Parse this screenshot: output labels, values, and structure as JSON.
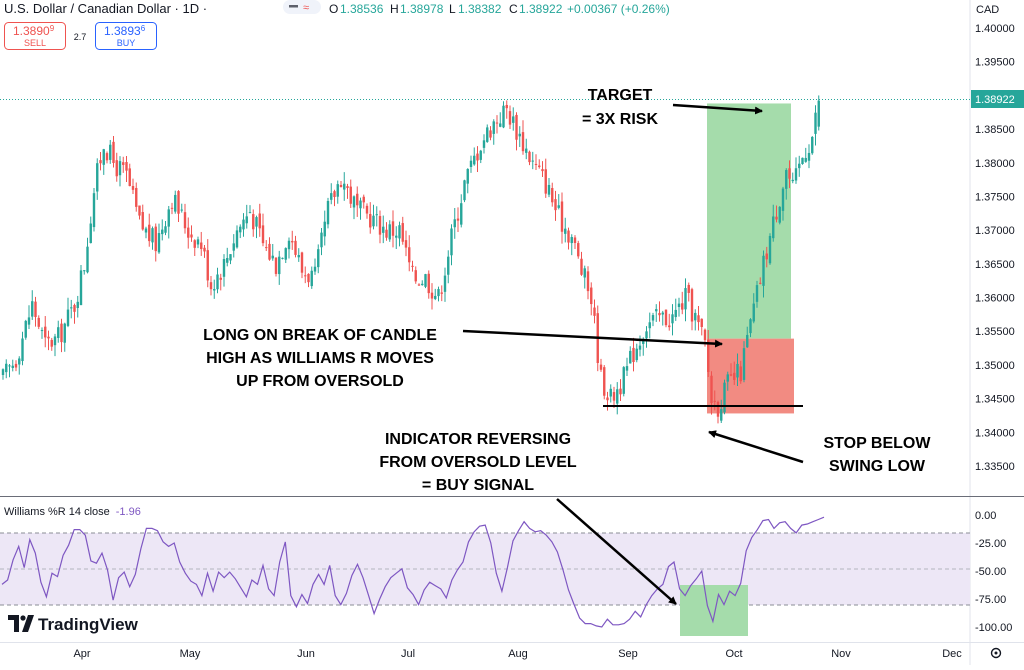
{
  "header": {
    "symbol": "U.S. Dollar / Canadian Dollar · 1D · ",
    "ohlc": {
      "o_label": "O",
      "o": "1.38536",
      "h_label": "H",
      "h": "1.38978",
      "l_label": "L",
      "l": "1.38382",
      "c_label": "C",
      "c": "1.38922",
      "change": "+0.00367 (+0.26%)"
    },
    "sell_price": "1.3890",
    "sell_super": "9",
    "sell_label": "SELL",
    "spread": "2.7",
    "buy_price": "1.3893",
    "buy_super": "6",
    "buy_label": "BUY"
  },
  "currency": "CAD",
  "price_badge": "1.38922",
  "colors": {
    "up": "#26a69a",
    "down": "#ef5350",
    "indicator_line": "#7e57c2",
    "band": "#ede7f6",
    "target_box": "#a5dcab",
    "stop_box": "#f28b82",
    "highlight_box": "#a5dcab",
    "sell": "#ef5350",
    "buy": "#2962ff"
  },
  "indicator": {
    "label": "Williams %R 14 close",
    "value": "-1.96",
    "levels": [
      "0.00",
      "-25.00",
      "-50.00",
      "-75.00",
      "-100.00"
    ]
  },
  "annotations": {
    "target_line1": "TARGET",
    "target_line2": "= 3X RISK",
    "long_line1": "LONG ON BREAK OF CANDLE",
    "long_line2": "HIGH AS WILLIAMS R MOVES",
    "long_line3": "UP FROM OVERSOLD",
    "indicator_line1": "INDICATOR REVERSING",
    "indicator_line2": "FROM OVERSOLD LEVEL",
    "indicator_line3": "= BUY SIGNAL",
    "stop_line1": "STOP BELOW",
    "stop_line2": "SWING LOW"
  },
  "brand": "TradingView",
  "settings_icon": "gear-icon",
  "chart_data": {
    "type": "candlestick",
    "title": "U.S. Dollar / Canadian Dollar · 1D",
    "y_axis": {
      "ticks": [
        "1.40000",
        "1.39500",
        "1.39000",
        "1.38500",
        "1.38000",
        "1.37500",
        "1.37000",
        "1.36500",
        "1.36000",
        "1.35500",
        "1.35000",
        "1.34500",
        "1.34000",
        "1.33500"
      ],
      "range": [
        1.3317,
        1.4018
      ]
    },
    "x_axis": {
      "ticks": [
        "Apr",
        "May",
        "Jun",
        "Jul",
        "Aug",
        "Sep",
        "Oct",
        "Nov",
        "Dec"
      ]
    },
    "path_points": [
      [
        0,
        1.348
      ],
      [
        4,
        1.351
      ],
      [
        9,
        1.359
      ],
      [
        13,
        1.353
      ],
      [
        17,
        1.354
      ],
      [
        22,
        1.359
      ],
      [
        25,
        1.365
      ],
      [
        28,
        1.376
      ],
      [
        31,
        1.383
      ],
      [
        34,
        1.38
      ],
      [
        38,
        1.378
      ],
      [
        42,
        1.371
      ],
      [
        47,
        1.368
      ],
      [
        52,
        1.375
      ],
      [
        57,
        1.37
      ],
      [
        61,
        1.368
      ],
      [
        64,
        1.362
      ],
      [
        68,
        1.365
      ],
      [
        72,
        1.37
      ],
      [
        76,
        1.373
      ],
      [
        80,
        1.368
      ],
      [
        84,
        1.365
      ],
      [
        88,
        1.37
      ],
      [
        92,
        1.364
      ],
      [
        96,
        1.363
      ],
      [
        100,
        1.373
      ],
      [
        104,
        1.378
      ],
      [
        109,
        1.373
      ],
      [
        113,
        1.372
      ],
      [
        118,
        1.37
      ],
      [
        122,
        1.37
      ],
      [
        126,
        1.363
      ],
      [
        130,
        1.363
      ],
      [
        134,
        1.36
      ],
      [
        138,
        1.369
      ],
      [
        142,
        1.377
      ],
      [
        147,
        1.383
      ],
      [
        151,
        1.386
      ],
      [
        155,
        1.388
      ],
      [
        159,
        1.384
      ],
      [
        163,
        1.38
      ],
      [
        167,
        1.377
      ],
      [
        171,
        1.372
      ],
      [
        175,
        1.369
      ],
      [
        178,
        1.364
      ],
      [
        181,
        1.36
      ],
      [
        184,
        1.348
      ],
      [
        187,
        1.345
      ],
      [
        191,
        1.348
      ],
      [
        194,
        1.352
      ],
      [
        198,
        1.356
      ],
      [
        202,
        1.357
      ],
      [
        206,
        1.357
      ],
      [
        210,
        1.36
      ],
      [
        213,
        1.357
      ],
      [
        216,
        1.353
      ],
      [
        218,
        1.345
      ],
      [
        220,
        1.344
      ],
      [
        223,
        1.347
      ],
      [
        227,
        1.349
      ],
      [
        230,
        1.356
      ],
      [
        234,
        1.365
      ],
      [
        238,
        1.373
      ],
      [
        241,
        1.379
      ],
      [
        243,
        1.376
      ],
      [
        246,
        1.381
      ],
      [
        249,
        1.384
      ],
      [
        251,
        1.3892
      ]
    ],
    "trade_setup": {
      "entry": 1.3539,
      "stop": 1.3428,
      "target": 1.3888,
      "swing_low_line": 1.344,
      "current_price": 1.38922
    },
    "williams_r": {
      "name": "Williams %R 14 close",
      "ylim": [
        -100,
        0
      ],
      "levels": [
        0,
        -20,
        -50,
        -80,
        -100
      ],
      "last": -1.96,
      "values": [
        -62,
        -58,
        -40,
        -28,
        -47,
        -22,
        -34,
        -60,
        -73,
        -52,
        -55,
        -36,
        -27,
        -13,
        -13,
        -18,
        -41,
        -43,
        -34,
        -49,
        -76,
        -56,
        -51,
        -64,
        -53,
        -30,
        -12,
        -12,
        -14,
        -24,
        -28,
        -25,
        -42,
        -52,
        -59,
        -62,
        -72,
        -52,
        -68,
        -51,
        -56,
        -51,
        -57,
        -65,
        -73,
        -58,
        -62,
        -45,
        -66,
        -72,
        -42,
        -24,
        -72,
        -82,
        -71,
        -79,
        -62,
        -53,
        -62,
        -45,
        -72,
        -80,
        -70,
        -54,
        -44,
        -56,
        -72,
        -88,
        -75,
        -64,
        -56,
        -52,
        -48,
        -65,
        -71,
        -80,
        -67,
        -60,
        -63,
        -66,
        -74,
        -58,
        -49,
        -42,
        -24,
        -15,
        -10,
        -9,
        -25,
        -52,
        -68,
        -47,
        -23,
        -14,
        -6,
        -12,
        -15,
        -14,
        -18,
        -24,
        -33,
        -49,
        -67,
        -80,
        -92,
        -97,
        -97,
        -99,
        -102,
        -93,
        -98,
        -98,
        -97,
        -93,
        -86,
        -91,
        -80,
        -72,
        -66,
        -62,
        -46,
        -42,
        -66,
        -72,
        -63,
        -57,
        -50,
        -81,
        -95,
        -71,
        -80,
        -68,
        -72,
        -61,
        -32,
        -20,
        -13,
        -5,
        -4,
        -12,
        -7,
        -6,
        -12,
        -16,
        -9,
        -8,
        -6,
        -4,
        -2
      ]
    }
  }
}
